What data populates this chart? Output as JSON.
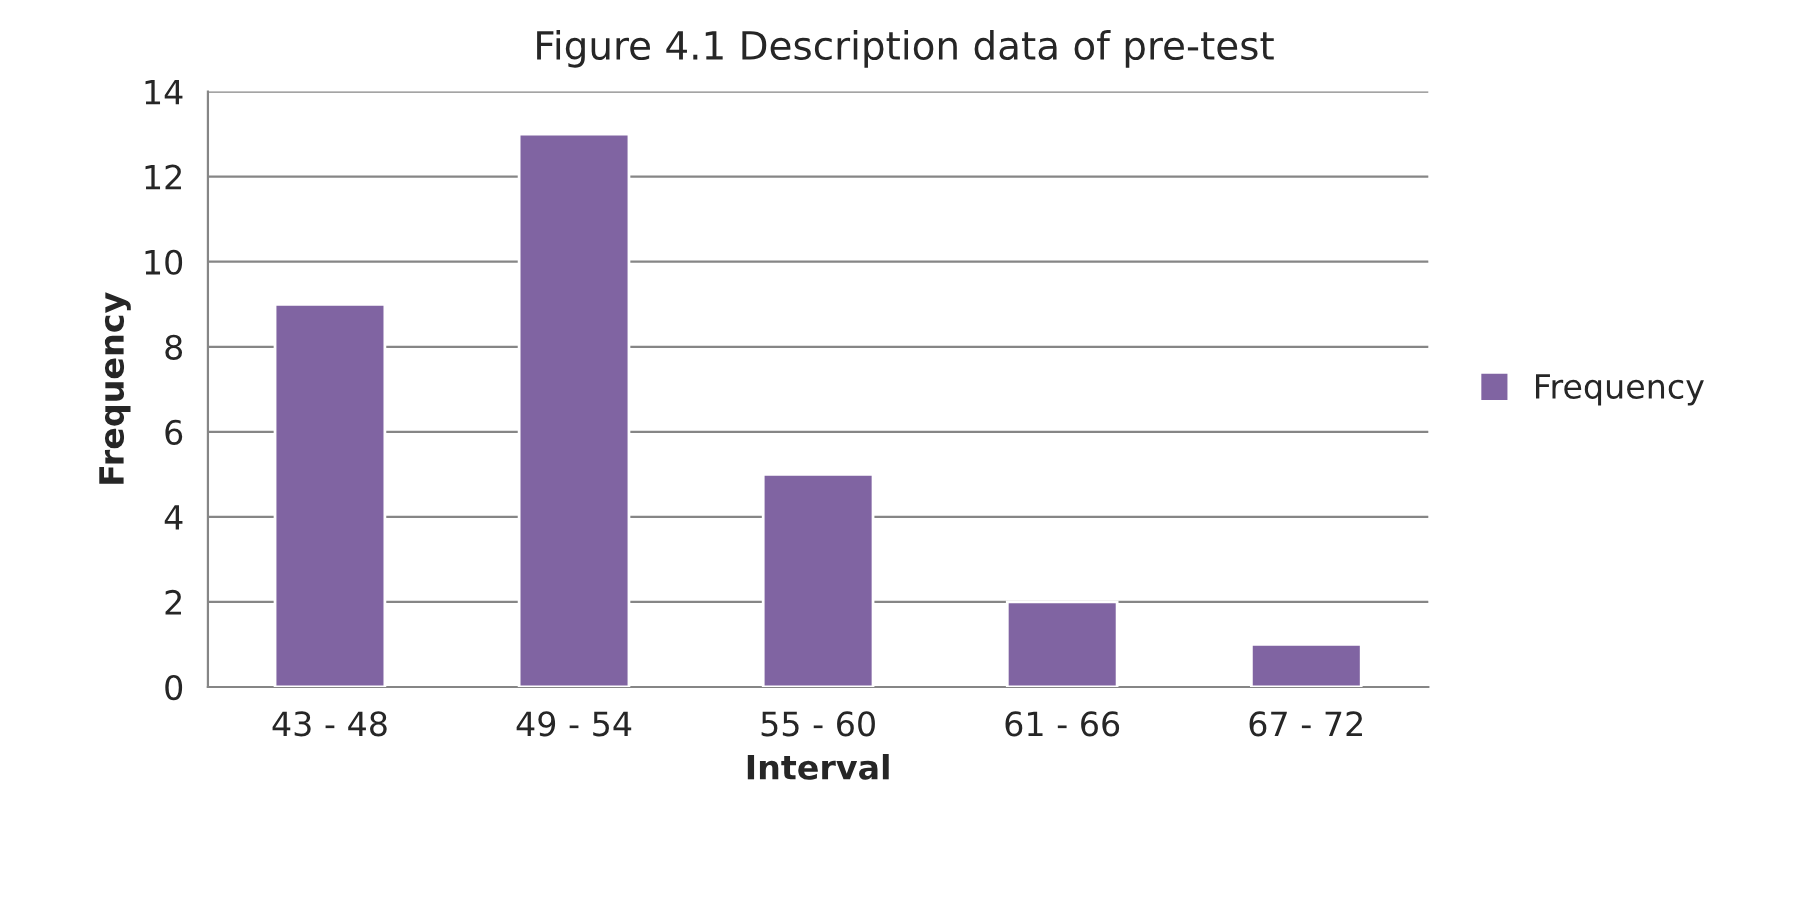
{
  "chart_data": {
    "type": "bar",
    "title": "Figure 4.1 Description data of pre-test",
    "xlabel": "Interval",
    "ylabel": "Frequency",
    "categories": [
      "43 - 48",
      "49 - 54",
      "55 - 60",
      "61 - 66",
      "67 - 72"
    ],
    "series": [
      {
        "name": "Frequency",
        "color": "#8064a2",
        "values": [
          9,
          13,
          5,
          2,
          1
        ]
      }
    ],
    "ylim": [
      0,
      14
    ],
    "yticks": [
      0,
      2,
      4,
      6,
      8,
      10,
      12,
      14
    ],
    "grid": "y",
    "legend": "right"
  }
}
